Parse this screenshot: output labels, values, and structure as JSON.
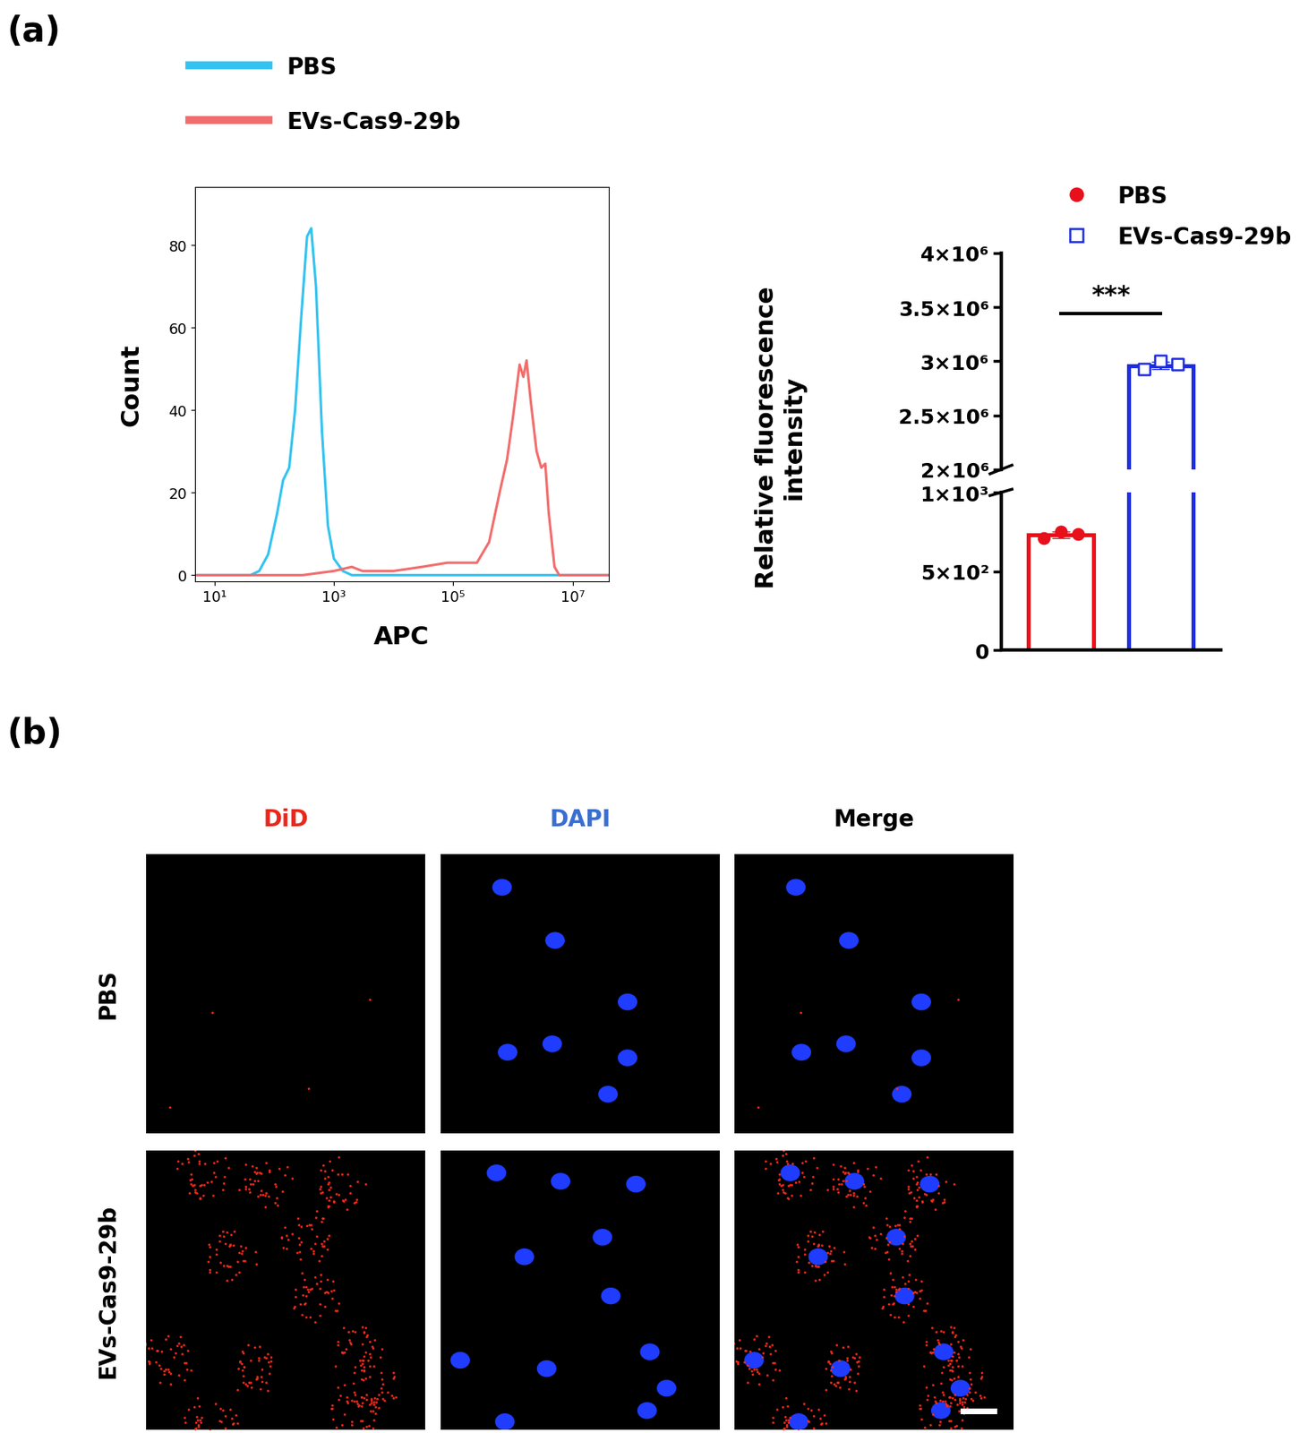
{
  "panel_labels": [
    "(a)",
    "(b)"
  ],
  "chart_data": [
    {
      "type": "line",
      "x_label": "APC",
      "y_label": "Count",
      "log": "x",
      "xlim": [
        4.7,
        40000000
      ],
      "xticks": [
        {
          "value": 10,
          "label": "10¹"
        },
        {
          "value": 1000,
          "label": "10³"
        },
        {
          "value": 100000,
          "label": "10⁵"
        },
        {
          "value": 10000000,
          "label": "10⁷"
        }
      ],
      "ylim": [
        -1.5,
        94
      ],
      "yticks": [
        0,
        20,
        40,
        60,
        80
      ],
      "legend": "upper left",
      "series": [
        {
          "name": "PBS",
          "color": "#33c3f0",
          "x": [
            4.7,
            40,
            56,
            79,
            112,
            141,
            178,
            224,
            282,
            355,
            417,
            501,
            631,
            794,
            1000,
            1413,
            1995,
            40000000
          ],
          "values": [
            0,
            0,
            1,
            5,
            15,
            23,
            26,
            40,
            62,
            82,
            84,
            70,
            35,
            12,
            4,
            1,
            0,
            0
          ]
        },
        {
          "name": "EVs-Cas9-29b",
          "color": "#f26d6d",
          "x": [
            4.7,
            300,
            1000,
            2000,
            3000,
            10000,
            30000,
            80000,
            150000,
            250000,
            400000,
            600000,
            800000,
            1000000,
            1300000,
            1500000,
            1700000,
            2000000,
            2500000,
            3000000,
            3500000,
            4000000,
            5000000,
            6000000,
            40000000
          ],
          "values": [
            0,
            0,
            1,
            2,
            1,
            1,
            2,
            3,
            3,
            3,
            8,
            20,
            28,
            38,
            51,
            48,
            52,
            42,
            30,
            26,
            27,
            15,
            2,
            0,
            0
          ]
        }
      ]
    },
    {
      "type": "bar",
      "y_label": "Relative fluorescence\nintensity",
      "categories": [
        null,
        null
      ],
      "tick_labels": "y",
      "legend": "upper left",
      "segments": [
        {
          "ylim": [
            0,
            1000
          ],
          "yticks": [
            0,
            {
              "value": 500,
              "label": "5×10²"
            },
            {
              "value": 1000,
              "label": "1×10³"
            }
          ]
        },
        {
          "ylim": [
            2000000,
            4000000
          ],
          "yticks": [
            {
              "value": 2000000,
              "label": "2×10⁶"
            },
            {
              "value": 2500000,
              "label": "2.5×10⁶"
            },
            {
              "value": 3000000,
              "label": "3×10⁶"
            },
            {
              "value": 3500000,
              "label": "3.5×10⁶"
            },
            {
              "value": 4000000,
              "label": "4×10⁶"
            }
          ]
        }
      ],
      "annotations": [
        "***"
      ],
      "series": [
        {
          "name": "PBS",
          "color": "#e8101a",
          "marker": "circle",
          "values": [
            730,
            null
          ],
          "errors": [
            20,
            null
          ],
          "points": [
            [
              710,
              750,
              735
            ],
            null
          ]
        },
        {
          "name": "EVs-Cas9-29b",
          "color": "#1a2be0",
          "marker": "open square",
          "values": [
            null,
            2960000
          ],
          "errors": [
            null,
            35000
          ],
          "points": [
            null,
            [
              2930000,
              3000000,
              2970000
            ]
          ]
        }
      ]
    }
  ],
  "images": {
    "columns": [
      {
        "label": "DiD",
        "color": "#e8281e"
      },
      {
        "label": "DAPI",
        "color": "#3a6fd1"
      },
      {
        "label": "Merge",
        "color": "#000000"
      }
    ],
    "rows": [
      "PBS",
      "EVs-Cas9-29b"
    ]
  }
}
